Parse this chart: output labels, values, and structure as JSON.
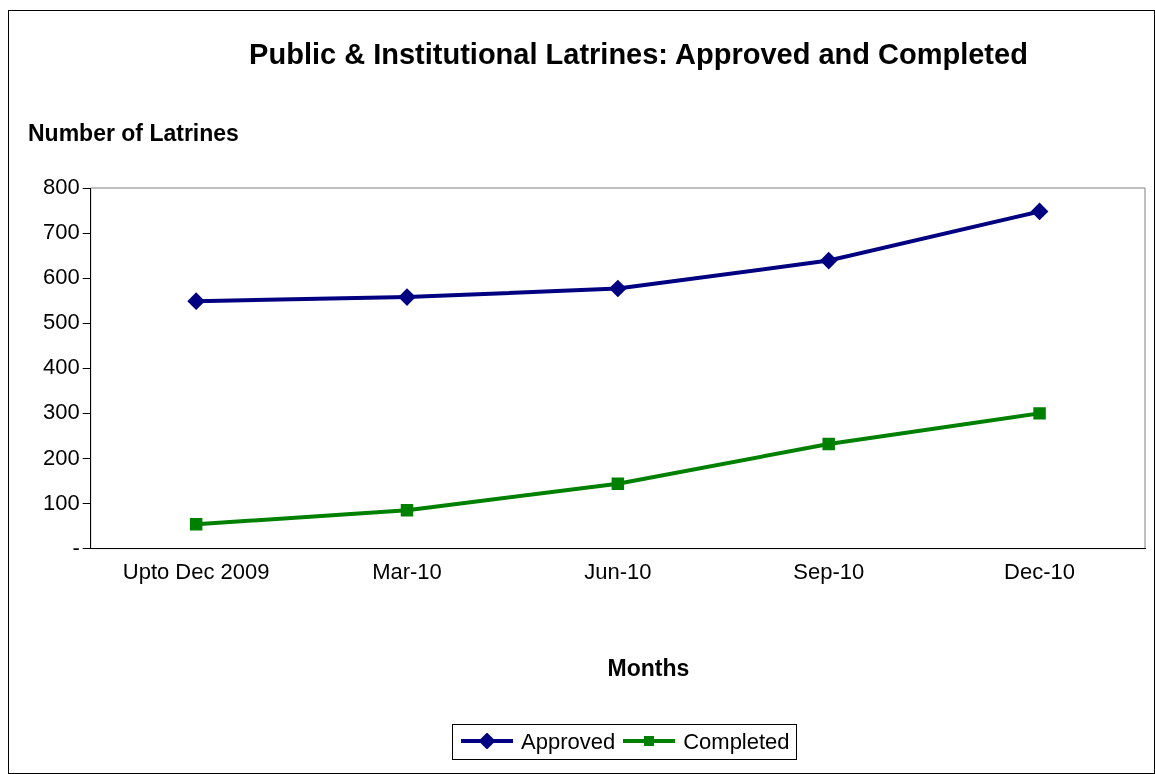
{
  "chart_data": {
    "type": "line",
    "title": "Public & Institutional Latrines: Approved and Completed",
    "xlabel": "Months",
    "ylabel": "Number of Latrines",
    "categories": [
      "Upto Dec 2009",
      "Mar-10",
      "Jun-10",
      "Sep-10",
      "Dec-10"
    ],
    "series": [
      {
        "name": "Approved",
        "color": "#000080",
        "values": [
          549,
          558,
          577,
          639,
          748
        ],
        "marker": "diamond"
      },
      {
        "name": "Completed",
        "color": "#008000",
        "values": [
          54,
          85,
          144,
          232,
          300
        ],
        "marker": "square"
      }
    ],
    "ylim": [
      0,
      800
    ],
    "yticks": [
      {
        "value": 0,
        "label": "-"
      },
      100,
      200,
      300,
      400,
      500,
      600,
      700,
      800
    ],
    "grid": false,
    "legend": "bottom",
    "line_style": "solid"
  }
}
